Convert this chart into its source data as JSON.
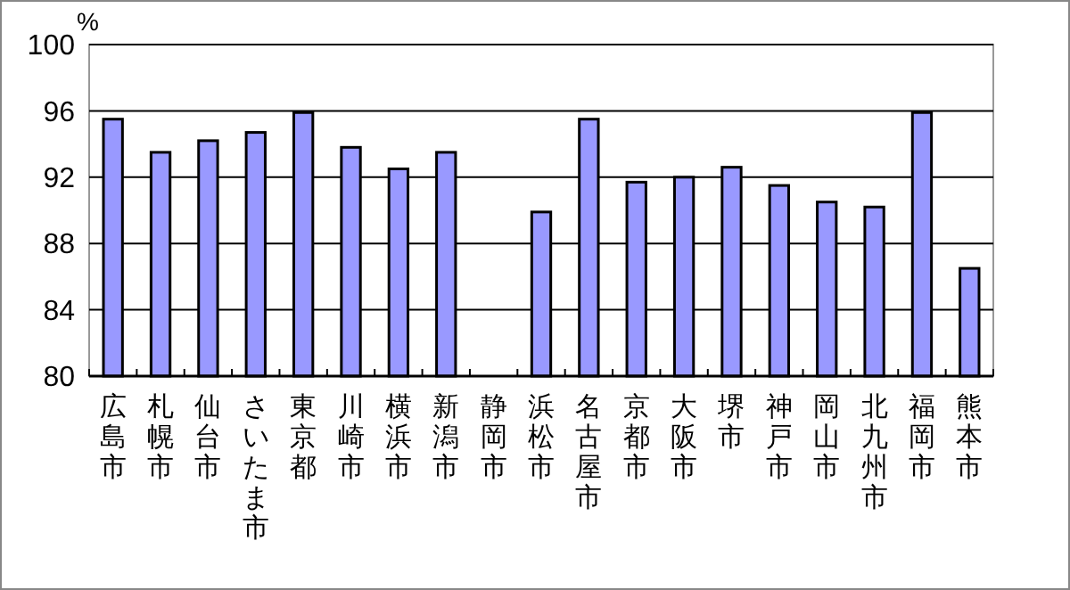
{
  "chart_data": {
    "type": "bar",
    "ylabel": "%",
    "categories": [
      "広島市",
      "札幌市",
      "仙台市",
      "さいたま市",
      "東京都",
      "川崎市",
      "横浜市",
      "新潟市",
      "静岡市",
      "浜松市",
      "名古屋市",
      "京都市",
      "大阪市",
      "堺市",
      "神戸市",
      "岡山市",
      "北九州市",
      "福岡市",
      "熊本市"
    ],
    "series": [
      {
        "color": "#9999ff",
        "values": [
          95.5,
          93.5,
          94.2,
          94.7,
          95.9,
          93.8,
          92.5,
          93.5,
          null,
          89.9,
          95.5,
          91.7,
          92.0,
          92.6,
          91.5,
          90.5,
          90.2,
          95.9,
          86.5
        ]
      }
    ],
    "ylim": [
      80,
      100
    ],
    "yticks": [
      80,
      84,
      88,
      92,
      96,
      100
    ],
    "grid": "y"
  }
}
